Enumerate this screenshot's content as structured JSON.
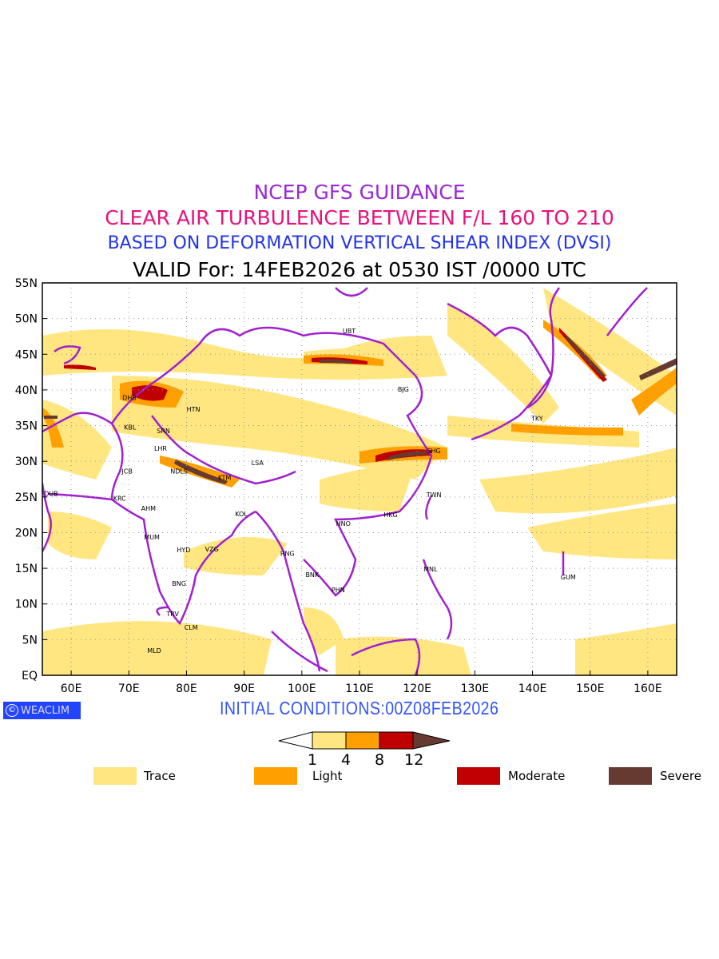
{
  "titles": {
    "line1": "NCEP GFS GUIDANCE",
    "line2": "CLEAR AIR TURBULENCE BETWEEN F/L 160 TO 210",
    "line3": "BASED ON DEFORMATION VERTICAL SHEAR INDEX (DVSI)",
    "line4": "VALID For: 14FEB2026 at 0530 IST /0000 UTC"
  },
  "initial_conditions": "INITIAL CONDITIONS:00Z08FEB2026",
  "logo": {
    "symbol": "©",
    "text": "WEACLIM"
  },
  "axes": {
    "lat_labels": [
      "55N",
      "50N",
      "45N",
      "40N",
      "35N",
      "30N",
      "25N",
      "20N",
      "15N",
      "10N",
      "5N",
      "EQ"
    ],
    "lon_labels": [
      "60E",
      "70E",
      "80E",
      "90E",
      "100E",
      "110E",
      "120E",
      "130E",
      "140E",
      "150E",
      "160E"
    ],
    "lon_range": [
      55,
      165
    ],
    "lat_range": [
      0,
      55
    ]
  },
  "colorbar": {
    "ticks": [
      "1",
      "4",
      "8",
      "12"
    ],
    "colors": [
      "#ffe680",
      "#ffa000",
      "#c00000",
      "#663a30"
    ]
  },
  "legend": [
    {
      "label": "Trace",
      "color": "#ffe680"
    },
    {
      "label": "Light",
      "color": "#ffa000"
    },
    {
      "label": "Moderate",
      "color": "#c00000"
    },
    {
      "label": "Severe",
      "color": "#663a30"
    }
  ],
  "cities": [
    {
      "code": "UBT",
      "lon": 108.2,
      "lat": 48.3
    },
    {
      "code": "BJG",
      "lon": 117.6,
      "lat": 40.1
    },
    {
      "code": "DHB",
      "lon": 70.1,
      "lat": 38.9
    },
    {
      "code": "HTN",
      "lon": 81.2,
      "lat": 37.3
    },
    {
      "code": "KBL",
      "lon": 70.2,
      "lat": 34.8
    },
    {
      "code": "SRN",
      "lon": 76.0,
      "lat": 34.3
    },
    {
      "code": "LHR",
      "lon": 75.5,
      "lat": 31.8
    },
    {
      "code": "TKY",
      "lon": 140.8,
      "lat": 36.0
    },
    {
      "code": "SHG",
      "lon": 122.9,
      "lat": 31.5
    },
    {
      "code": "LSA",
      "lon": 92.3,
      "lat": 29.8
    },
    {
      "code": "JCB",
      "lon": 69.7,
      "lat": 28.6
    },
    {
      "code": "NDLS",
      "lon": 78.7,
      "lat": 28.6
    },
    {
      "code": "KTM",
      "lon": 86.6,
      "lat": 27.7
    },
    {
      "code": "DUB",
      "lon": 56.5,
      "lat": 25.5
    },
    {
      "code": "KRC",
      "lon": 68.4,
      "lat": 24.8
    },
    {
      "code": "TWN",
      "lon": 122.9,
      "lat": 25.3
    },
    {
      "code": "AHM",
      "lon": 73.4,
      "lat": 23.4
    },
    {
      "code": "KOL",
      "lon": 89.5,
      "lat": 22.6
    },
    {
      "code": "HKG",
      "lon": 115.4,
      "lat": 22.5
    },
    {
      "code": "HNO",
      "lon": 107.2,
      "lat": 21.3
    },
    {
      "code": "MUM",
      "lon": 74.0,
      "lat": 19.4
    },
    {
      "code": "HYD",
      "lon": 79.5,
      "lat": 17.6
    },
    {
      "code": "VZG",
      "lon": 84.4,
      "lat": 17.7
    },
    {
      "code": "RNG",
      "lon": 97.5,
      "lat": 17.1
    },
    {
      "code": "MNL",
      "lon": 122.3,
      "lat": 14.9
    },
    {
      "code": "BNK",
      "lon": 101.8,
      "lat": 14.1
    },
    {
      "code": "GUM",
      "lon": 146.2,
      "lat": 13.8
    },
    {
      "code": "BNG",
      "lon": 78.7,
      "lat": 12.9
    },
    {
      "code": "PHN",
      "lon": 106.3,
      "lat": 12.0
    },
    {
      "code": "TRV",
      "lon": 77.6,
      "lat": 8.6
    },
    {
      "code": "CLM",
      "lon": 80.8,
      "lat": 6.7
    },
    {
      "code": "MLD",
      "lon": 74.4,
      "lat": 3.5
    }
  ]
}
